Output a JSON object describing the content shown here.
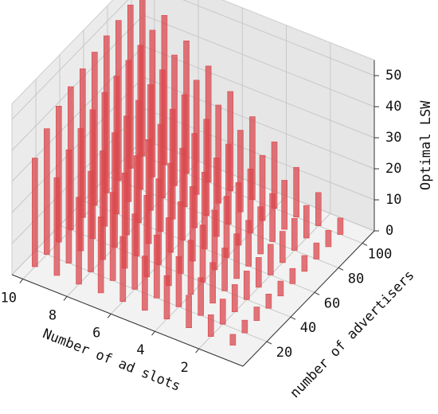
{
  "chart_data": {
    "type": "bar3d",
    "xlabel": "Number of ad slots",
    "ylabel": "number of advertisers",
    "zlabel": "Optimal LSW",
    "x": [
      1,
      2,
      3,
      4,
      5,
      6,
      7,
      8,
      9,
      10
    ],
    "y": [
      10,
      20,
      30,
      40,
      50,
      60,
      70,
      80,
      90,
      100
    ],
    "values": [
      [
        3.5,
        4.1,
        4.4,
        4.6,
        4.8,
        4.9,
        5.1,
        5.2,
        5.3,
        5.3
      ],
      [
        7,
        8.1,
        8.8,
        9.2,
        9.6,
        9.9,
        10.1,
        10.3,
        10.5,
        10.7
      ],
      [
        10.5,
        12.2,
        13.1,
        13.8,
        14.4,
        14.8,
        15.2,
        15.5,
        15.8,
        16
      ],
      [
        14,
        16.2,
        17.5,
        18.4,
        19.2,
        19.7,
        20.2,
        20.6,
        21,
        21.4
      ],
      [
        17.5,
        20.3,
        21.9,
        23.1,
        24,
        24.7,
        25.3,
        25.8,
        26.3,
        26.7
      ],
      [
        21,
        24.3,
        26.3,
        27.7,
        28.7,
        29.6,
        30.4,
        31,
        31.6,
        32
      ],
      [
        24.5,
        28.4,
        30.7,
        32.3,
        33.5,
        34.5,
        35.4,
        36.1,
        36.8,
        37.4
      ],
      [
        28,
        32.4,
        35,
        36.9,
        38.3,
        39.4,
        40.5,
        41.3,
        42.1,
        42.7
      ],
      [
        31.5,
        36.5,
        39.4,
        41.5,
        43.1,
        44.4,
        45.5,
        46.4,
        47.3,
        48.1
      ],
      [
        35,
        40.5,
        43.8,
        46.1,
        47.9,
        49.3,
        50.6,
        51.6,
        52.6,
        53.4
      ]
    ],
    "color": "#d9484d",
    "xlim": [
      0,
      10.5
    ],
    "ylim": [
      0,
      110
    ],
    "zlim": [
      0,
      55
    ],
    "xticks": [
      2,
      4,
      6,
      8,
      10
    ],
    "yticks": [
      20,
      40,
      60,
      80,
      100
    ],
    "zticks": [
      0,
      10,
      20,
      30,
      40,
      50
    ],
    "grid": true
  }
}
